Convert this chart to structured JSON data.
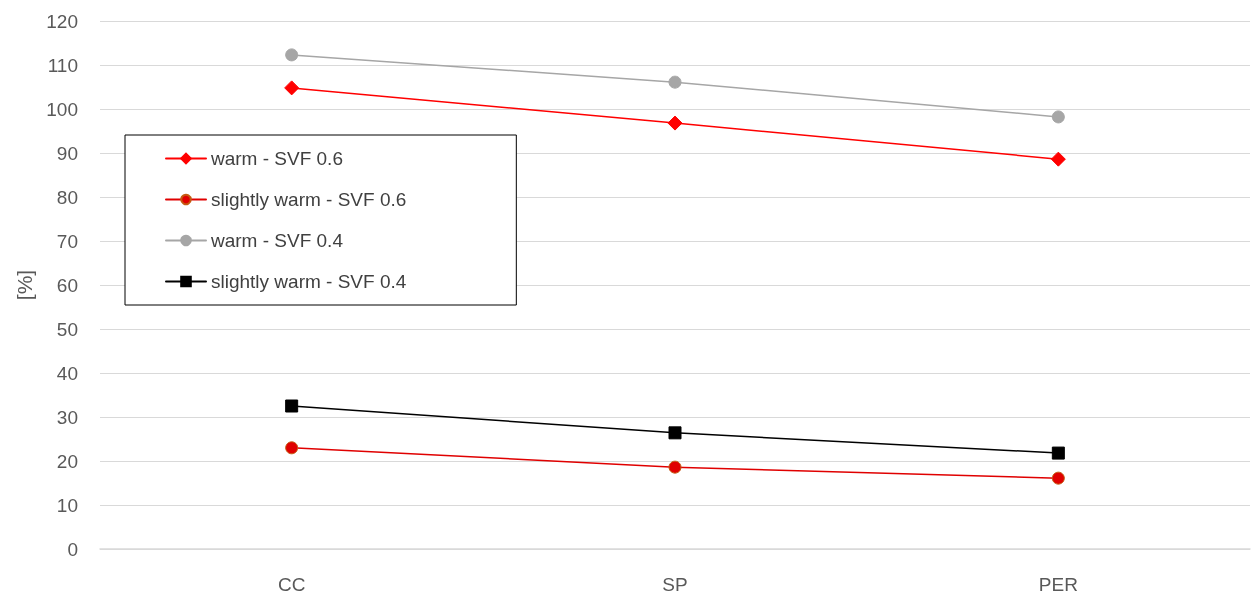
{
  "chart_data": {
    "type": "line",
    "ylabel": "[%]",
    "categories": [
      "CC",
      "SP",
      "PER"
    ],
    "series": [
      {
        "name": "warm - SVF 0.6",
        "color": "#ff0000",
        "marker": "diamond",
        "values": [
          104.8,
          96.8,
          88.6
        ]
      },
      {
        "name": "slightly warm - SVF 0.6",
        "color": "#e00000",
        "marker": "circle",
        "values": [
          23.0,
          18.6,
          16.1
        ]
      },
      {
        "name": "warm - SVF 0.4",
        "color": "#a6a6a6",
        "marker": "circle",
        "values": [
          112.3,
          106.1,
          98.2
        ]
      },
      {
        "name": "slightly warm - SVF 0.4",
        "color": "#000000",
        "marker": "square",
        "values": [
          32.5,
          26.4,
          21.8
        ]
      }
    ],
    "ylim": [
      0,
      120
    ],
    "yticks": [
      0,
      10,
      20,
      30,
      40,
      50,
      60,
      70,
      80,
      90,
      100,
      110,
      120
    ],
    "grid": "y",
    "legend": "left",
    "line_style": "solid"
  }
}
